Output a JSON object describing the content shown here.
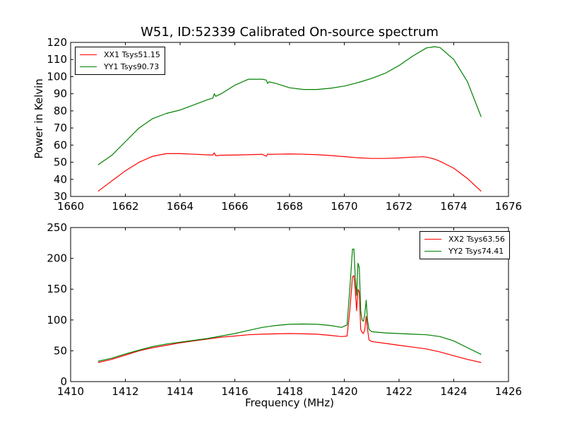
{
  "figure": {
    "title": "W51, ID:52339 Calibrated On-source spectrum",
    "ylabel": "Power in Kelvin",
    "xlabel": "Frequency (MHz)"
  },
  "chart_data": [
    {
      "type": "line",
      "title": "W51, ID:52339 Calibrated On-source spectrum",
      "ylabel": "Power in Kelvin",
      "xlabel": "",
      "xlim": [
        1660,
        1676
      ],
      "ylim": [
        30,
        120
      ],
      "xticks": [
        1660,
        1662,
        1664,
        1666,
        1668,
        1670,
        1672,
        1674,
        1676
      ],
      "yticks": [
        30,
        40,
        50,
        60,
        70,
        80,
        90,
        100,
        110,
        120
      ],
      "grid": false,
      "legend_position": "top-left",
      "series": [
        {
          "name": "XX1 Tsys51.15",
          "color": "#ff0000",
          "x": [
            1661.0,
            1661.5,
            1662.0,
            1662.5,
            1663.0,
            1663.5,
            1664.0,
            1664.5,
            1665.0,
            1665.2,
            1665.25,
            1665.3,
            1665.5,
            1666.0,
            1666.5,
            1667.0,
            1667.15,
            1667.2,
            1667.25,
            1667.5,
            1668.0,
            1668.5,
            1669.0,
            1669.5,
            1670.0,
            1670.5,
            1671.0,
            1671.5,
            1672.0,
            1672.5,
            1672.9,
            1673.0,
            1673.3,
            1673.5,
            1674.0,
            1674.5,
            1675.0
          ],
          "y": [
            33,
            39,
            45,
            50,
            53.5,
            55,
            55,
            54.7,
            54.3,
            54.2,
            55.5,
            53.8,
            54.1,
            54.2,
            54.4,
            54.6,
            53.5,
            54.8,
            54.6,
            54.7,
            54.8,
            54.7,
            54.4,
            53.9,
            53.3,
            52.6,
            52.2,
            52.2,
            52.5,
            53,
            53.2,
            53,
            51.8,
            50.5,
            46.5,
            40.5,
            33
          ]
        },
        {
          "name": "YY1 Tsys90.73",
          "color": "#008000",
          "x": [
            1661.0,
            1661.5,
            1662.0,
            1662.5,
            1663.0,
            1663.5,
            1664.0,
            1664.5,
            1665.0,
            1665.2,
            1665.25,
            1665.3,
            1665.5,
            1666.0,
            1666.5,
            1667.0,
            1667.15,
            1667.2,
            1667.25,
            1667.5,
            1668.0,
            1668.5,
            1669.0,
            1669.5,
            1670.0,
            1670.5,
            1671.0,
            1671.5,
            1672.0,
            1672.5,
            1673.0,
            1673.3,
            1673.5,
            1674.0,
            1674.5,
            1675.0
          ],
          "y": [
            48.5,
            54,
            62,
            70,
            75.5,
            78.5,
            80.5,
            83.5,
            86.5,
            87.5,
            90,
            88.5,
            90,
            95,
            98.5,
            98.5,
            98,
            96,
            97,
            96,
            93.5,
            92.5,
            92.5,
            93.2,
            94.5,
            96.5,
            99,
            102,
            106.5,
            112,
            116.8,
            117.5,
            117,
            110,
            97,
            76.5
          ]
        }
      ]
    },
    {
      "type": "line",
      "title": "",
      "xlabel": "Frequency (MHz)",
      "ylabel": "",
      "xlim": [
        1410,
        1426
      ],
      "ylim": [
        0,
        250
      ],
      "xticks": [
        1410,
        1412,
        1414,
        1416,
        1418,
        1420,
        1422,
        1424,
        1426
      ],
      "yticks": [
        0,
        50,
        100,
        150,
        200,
        250
      ],
      "grid": false,
      "legend_position": "top-right",
      "series": [
        {
          "name": "XX2 Tsys63.56",
          "color": "#ff0000",
          "x": [
            1411.0,
            1411.5,
            1412.0,
            1412.5,
            1413.0,
            1413.5,
            1414.0,
            1414.5,
            1415.0,
            1415.5,
            1416.0,
            1416.5,
            1417.0,
            1417.5,
            1418.0,
            1418.5,
            1419.0,
            1419.5,
            1419.9,
            1420.1,
            1420.2,
            1420.3,
            1420.35,
            1420.4,
            1420.45,
            1420.5,
            1420.55,
            1420.6,
            1420.65,
            1420.7,
            1420.75,
            1420.8,
            1420.85,
            1420.9,
            1421.0,
            1421.5,
            1422.0,
            1422.5,
            1423.0,
            1423.5,
            1424.0,
            1424.5,
            1425.0
          ],
          "y": [
            31,
            36,
            43,
            50,
            55,
            59,
            63,
            66,
            69,
            72,
            74,
            76,
            77,
            77.5,
            78,
            77.5,
            77,
            75,
            73,
            74,
            115,
            170,
            172,
            150,
            115,
            150,
            145,
            85,
            80,
            78,
            85,
            106,
            85,
            68,
            65,
            62,
            59,
            56,
            53,
            48,
            42,
            36,
            31
          ]
        },
        {
          "name": "YY2 Tsys74.41",
          "color": "#008000",
          "x": [
            1411.0,
            1411.5,
            1412.0,
            1412.5,
            1413.0,
            1413.5,
            1414.0,
            1414.5,
            1415.0,
            1415.5,
            1416.0,
            1416.5,
            1417.0,
            1417.5,
            1418.0,
            1418.5,
            1419.0,
            1419.5,
            1419.9,
            1420.1,
            1420.2,
            1420.3,
            1420.35,
            1420.4,
            1420.45,
            1420.5,
            1420.55,
            1420.6,
            1420.65,
            1420.7,
            1420.75,
            1420.8,
            1420.85,
            1420.9,
            1421.0,
            1421.5,
            1422.0,
            1422.5,
            1423.0,
            1423.5,
            1424.0,
            1424.5,
            1425.0
          ],
          "y": [
            33,
            38,
            45,
            51,
            57,
            61,
            64,
            67,
            70,
            74,
            78,
            83,
            88,
            91,
            93,
            93.5,
            93,
            91,
            88,
            92,
            150,
            215,
            215,
            170,
            140,
            192,
            185,
            115,
            100,
            98,
            110,
            132,
            100,
            85,
            81,
            79,
            78,
            77,
            76,
            73,
            66,
            55,
            44
          ]
        }
      ]
    }
  ]
}
